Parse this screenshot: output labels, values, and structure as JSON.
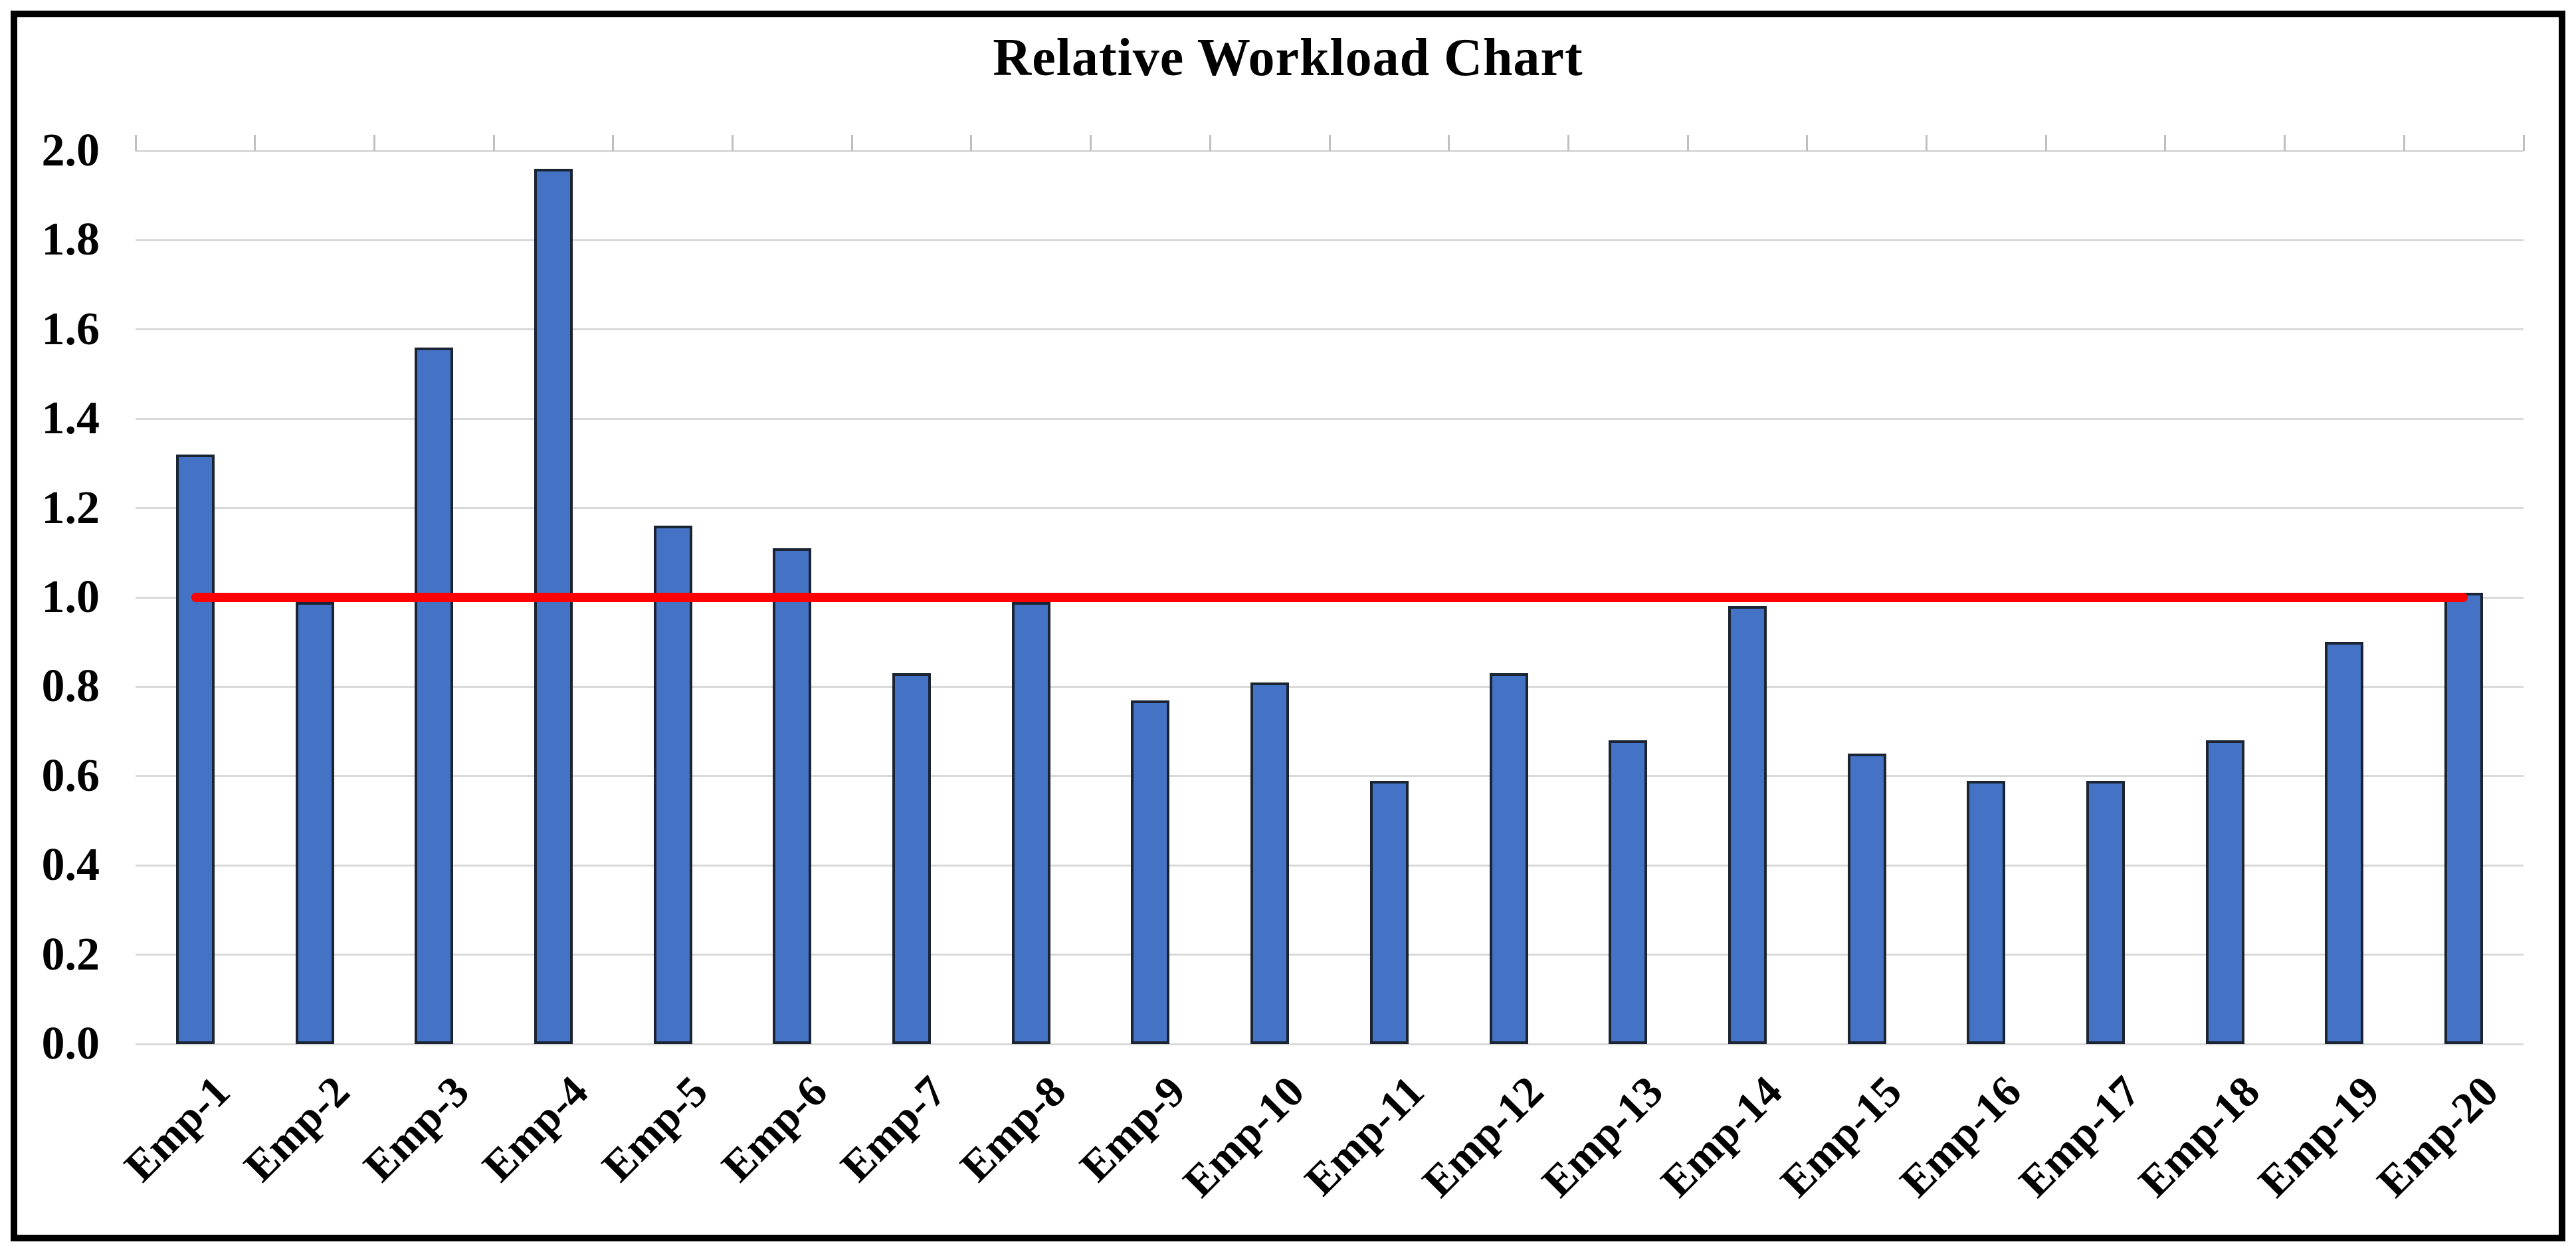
{
  "chart_data": {
    "type": "bar",
    "title": "Relative Workload Chart",
    "categories": [
      "Emp-1",
      "Emp-2",
      "Emp-3",
      "Emp-4",
      "Emp-5",
      "Emp-6",
      "Emp-7",
      "Emp-8",
      "Emp-9",
      "Emp-10",
      "Emp-11",
      "Emp-12",
      "Emp-13",
      "Emp-14",
      "Emp-15",
      "Emp-16",
      "Emp-17",
      "Emp-18",
      "Emp-19",
      "Emp-20"
    ],
    "values": [
      1.32,
      0.99,
      1.56,
      1.96,
      1.16,
      1.11,
      0.83,
      0.99,
      0.77,
      0.81,
      0.59,
      0.83,
      0.68,
      0.98,
      0.65,
      0.59,
      0.59,
      0.68,
      0.9,
      1.01
    ],
    "reference_line": {
      "value": 1.0,
      "color": "#FF0000"
    },
    "xlabel": "",
    "ylabel": "",
    "ylim": [
      0.0,
      2.0
    ],
    "y_tick_step": 0.2,
    "y_tick_labels": [
      "0.0",
      "0.2",
      "0.4",
      "0.6",
      "0.8",
      "1.0",
      "1.2",
      "1.4",
      "1.6",
      "1.8",
      "2.0"
    ],
    "grid": true,
    "legend": false,
    "colors": {
      "bar_fill": "#4472C4",
      "bar_border": "#1A2433",
      "gridline": "#D9D9D9",
      "axis_tick": "#BFBFBF",
      "text": "#000000",
      "frame_border": "#000000",
      "background": "#FFFFFF"
    }
  }
}
